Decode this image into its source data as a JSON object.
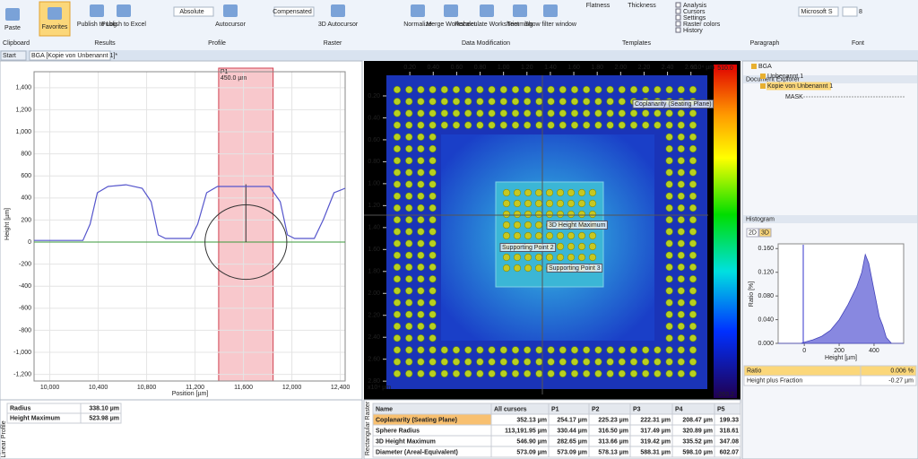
{
  "ribbon": {
    "buttons": [
      "Paste",
      "Favorites",
      "Publish to Log",
      "Publish to Excel",
      "Absolute",
      "Autocursor",
      "Compensated",
      "3D Autocursor",
      "Normalize",
      "Merge Worksheet",
      "Recalculate Worksheet",
      "Trimming",
      "Show filter window",
      "Flatness",
      "Thickness",
      "Microsoft S",
      "8"
    ],
    "checks": [
      "Analysis",
      "Cursors",
      "Settings",
      "Raster colors",
      "History"
    ],
    "groups": [
      "Clipboard",
      "Results",
      "Profile",
      "Raster",
      "Data Modification",
      "Templates",
      "Paragraph",
      "Font"
    ]
  },
  "tabs": [
    "Start",
    "BGA [Kopie von Unbenannt 1]*"
  ],
  "profile": {
    "xlabel": "Position [µm]",
    "ylabel": "Height [µm]",
    "xlim": [
      9870,
      12440
    ],
    "ylim": [
      -1260,
      1545
    ],
    "xticks": [
      {
        "value": 10000,
        "label": "10,000"
      },
      {
        "value": 10400,
        "label": "10,400"
      },
      {
        "value": 10800,
        "label": "10,800"
      },
      {
        "value": 11200,
        "label": "11,200"
      },
      {
        "value": 11600,
        "label": "11,600"
      },
      {
        "value": 12000,
        "label": "12,000"
      },
      {
        "value": 12400,
        "label": "12,400"
      }
    ],
    "yticks": [
      {
        "value": 1400,
        "label": "1,400"
      },
      {
        "value": 1200,
        "label": "1,200"
      },
      {
        "value": 1000,
        "label": "1,000"
      },
      800,
      600,
      400,
      200,
      0,
      -200,
      -400,
      -600,
      -800,
      {
        "value": -1000,
        "label": "-1,000"
      },
      {
        "value": -1200,
        "label": "-1,200"
      }
    ],
    "x": [
      9870,
      10274,
      10333,
      10393,
      10481,
      10630,
      10763,
      10837,
      10896,
      10956,
      11163,
      11222,
      11296,
      11385,
      11815,
      11904,
      11963,
      12022,
      12185,
      12259,
      12348,
      12440
    ],
    "values": [
      15,
      15,
      163,
      447,
      504,
      520,
      488,
      366,
      65,
      33,
      33,
      163,
      447,
      504,
      504,
      366,
      65,
      33,
      33,
      203,
      447,
      488
    ],
    "cursor": {
      "name": "P1",
      "center": 11620,
      "width": {
        "value": 450,
        "label": "450.0 µm"
      }
    },
    "table": [
      [
        "Radius",
        "338.10 µm"
      ],
      [
        "Height Maximum",
        "523.98 µm"
      ]
    ],
    "side_label": "Linear Profile"
  },
  "raster": {
    "xticks": [
      {
        "value": 0.2,
        "label": "0.20"
      },
      {
        "value": 0.4,
        "label": "0.40"
      },
      {
        "value": 0.6,
        "label": "0.60"
      },
      {
        "value": 0.8,
        "label": "0.80"
      },
      {
        "value": 1.0,
        "label": "1.00"
      },
      {
        "value": 1.2,
        "label": "1.20"
      },
      {
        "value": 1.4,
        "label": "1.40"
      },
      {
        "value": 1.6,
        "label": "1.60"
      },
      {
        "value": 1.8,
        "label": "1.80"
      },
      {
        "value": 2.0,
        "label": "2.00"
      },
      {
        "value": 2.2,
        "label": "2.20"
      },
      {
        "value": 2.4,
        "label": "2.40"
      },
      {
        "value": 2.6,
        "label": "2.60"
      }
    ],
    "yticks": [
      {
        "value": 0.2,
        "label": "0.20"
      },
      {
        "value": 0.4,
        "label": "0.40"
      },
      {
        "value": 0.6,
        "label": "0.60"
      },
      {
        "value": 0.8,
        "label": "0.80"
      },
      {
        "value": 1.0,
        "label": "1.00"
      },
      {
        "value": 1.2,
        "label": "1.20"
      },
      {
        "value": 1.4,
        "label": "1.40"
      },
      {
        "value": 1.6,
        "label": "1.60"
      },
      {
        "value": 1.8,
        "label": "1.80"
      },
      {
        "value": 2.0,
        "label": "2.00"
      },
      {
        "value": 2.2,
        "label": "2.20"
      },
      {
        "value": 2.4,
        "label": "2.40"
      },
      {
        "value": 2.6,
        "label": "2.60"
      },
      {
        "value": 2.8,
        "label": "2.80"
      }
    ],
    "xlim": [
      0,
      2.74
    ],
    "ylim": [
      0,
      2.86
    ],
    "x_unit": "x10⁴ µm",
    "y_unit": "x10⁴ µm",
    "colorbar": [
      "510.0",
      "-263.2"
    ],
    "annotations": [
      "Coplanarity (Seating Plane)",
      "3D Height Maximum",
      "Supporting Point 2",
      "Supporting Point 3"
    ],
    "table": {
      "header": [
        "Name",
        "All cursors",
        "P1",
        "P2",
        "P3",
        "P4",
        "P5"
      ],
      "rows": [
        [
          "Coplanarity (Seating Plane)",
          "352.13 µm",
          "254.17 µm",
          "225.23 µm",
          "222.31 µm",
          "208.47 µm",
          "199.33"
        ],
        [
          "Sphere Radius",
          "113,191.95 µm",
          "330.44 µm",
          "316.50 µm",
          "317.49 µm",
          "320.89 µm",
          "318.61"
        ],
        [
          "3D Height Maximum",
          "546.90 µm",
          "282.65 µm",
          "313.66 µm",
          "319.42 µm",
          "335.52 µm",
          "347.08"
        ],
        [
          "Diameter (Areal-Equivalent)",
          "573.09 µm",
          "573.09 µm",
          "578.13 µm",
          "588.31 µm",
          "598.10 µm",
          "602.07"
        ]
      ]
    },
    "side_label": "Rectangular Raster"
  },
  "explorer": {
    "title": "Document Explorer",
    "items": [
      "BGA",
      "Unbenannt 1",
      "Kopie von Unbenannt 1",
      "MASK"
    ]
  },
  "histogram": {
    "title": "Histogram",
    "tabs": [
      "2D",
      "3D"
    ],
    "xlabel": "Height [µm]",
    "ylabel": "Ratio [%]",
    "xlim": [
      -150,
      570
    ],
    "ylim": [
      0,
      0.168
    ],
    "xticks": [
      0,
      200,
      400
    ],
    "yticks": [
      {
        "value": 0,
        "label": "0.000"
      },
      {
        "value": 0.04,
        "label": "0.040"
      },
      {
        "value": 0.08,
        "label": "0.080"
      },
      {
        "value": 0.12,
        "label": "0.120"
      },
      {
        "value": 0.16,
        "label": "0.160"
      }
    ],
    "x": [
      -150,
      -20,
      0,
      50,
      100,
      150,
      200,
      250,
      300,
      330,
      350,
      370,
      400,
      430,
      450,
      470,
      500,
      570
    ],
    "values": [
      0,
      0,
      0.002,
      0.006,
      0.012,
      0.022,
      0.04,
      0.065,
      0.095,
      0.12,
      0.15,
      0.135,
      0.09,
      0.045,
      0.03,
      0.01,
      0,
      0
    ],
    "table": [
      [
        "Ratio",
        "0.006 %"
      ],
      [
        "Height plus Fraction",
        "-0.27 µm"
      ]
    ]
  }
}
